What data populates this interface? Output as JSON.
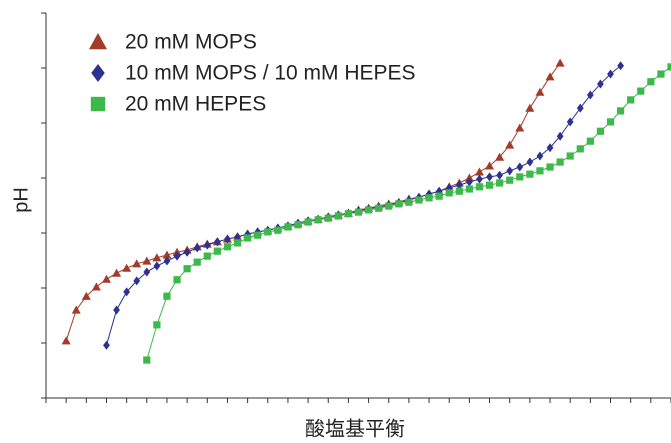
{
  "chart_data": {
    "type": "line",
    "xlabel": "酸塩基平衡",
    "ylabel": "pH",
    "xlim": [
      0,
      62
    ],
    "ylim": [
      0,
      7
    ],
    "xticks": [
      0,
      2,
      4,
      6,
      8,
      10,
      12,
      14,
      16,
      18,
      20,
      22,
      24,
      26,
      28,
      30,
      32,
      34,
      36,
      38,
      40,
      42,
      44,
      46,
      48,
      50,
      52,
      54,
      56,
      58,
      60,
      62
    ],
    "yticks": [
      0,
      1,
      2,
      3,
      4,
      5,
      6,
      7
    ],
    "legend": "upper left",
    "series": [
      {
        "name": "20 mM MOPS",
        "color": "#a33b29",
        "marker": "triangle",
        "x": [
          2,
          3,
          4,
          5,
          6,
          7,
          8,
          9,
          10,
          11,
          12,
          13,
          14,
          15,
          16,
          17,
          18,
          19,
          20,
          21,
          22,
          23,
          24,
          25,
          26,
          27,
          28,
          29,
          30,
          31,
          32,
          33,
          34,
          35,
          36,
          37,
          38,
          39,
          40,
          41,
          42,
          43,
          44,
          45,
          46,
          47,
          48,
          49,
          50,
          51
        ],
        "values": [
          1.04,
          1.6,
          1.85,
          2.02,
          2.16,
          2.27,
          2.36,
          2.44,
          2.49,
          2.55,
          2.6,
          2.65,
          2.69,
          2.75,
          2.8,
          2.84,
          2.89,
          2.93,
          2.98,
          3.02,
          3.05,
          3.09,
          3.13,
          3.18,
          3.22,
          3.25,
          3.29,
          3.33,
          3.36,
          3.42,
          3.45,
          3.49,
          3.53,
          3.56,
          3.62,
          3.65,
          3.71,
          3.76,
          3.84,
          3.91,
          4.0,
          4.11,
          4.22,
          4.38,
          4.6,
          4.91,
          5.27,
          5.56,
          5.84,
          6.09
        ]
      },
      {
        "name": "10 mM MOPS / 10 mM HEPES",
        "color": "#2e3192",
        "marker": "diamond",
        "x": [
          6,
          7,
          8,
          9,
          10,
          11,
          12,
          13,
          14,
          15,
          16,
          17,
          18,
          19,
          20,
          21,
          22,
          23,
          24,
          25,
          26,
          27,
          28,
          29,
          30,
          31,
          32,
          33,
          34,
          35,
          36,
          37,
          38,
          39,
          40,
          41,
          42,
          43,
          44,
          45,
          46,
          47,
          48,
          49,
          50,
          51,
          52,
          53,
          54,
          55,
          56,
          57
        ],
        "values": [
          0.96,
          1.6,
          1.93,
          2.13,
          2.29,
          2.4,
          2.49,
          2.58,
          2.65,
          2.73,
          2.78,
          2.84,
          2.89,
          2.93,
          2.98,
          3.02,
          3.05,
          3.09,
          3.13,
          3.18,
          3.22,
          3.25,
          3.29,
          3.33,
          3.36,
          3.4,
          3.44,
          3.47,
          3.51,
          3.55,
          3.6,
          3.65,
          3.71,
          3.76,
          3.82,
          3.87,
          3.93,
          3.98,
          4.02,
          4.05,
          4.13,
          4.2,
          4.29,
          4.4,
          4.55,
          4.76,
          5.02,
          5.27,
          5.51,
          5.71,
          5.89,
          6.04
        ]
      },
      {
        "name": "20 mM HEPES",
        "color": "#3cb94a",
        "marker": "square",
        "x": [
          10,
          11,
          12,
          13,
          14,
          15,
          16,
          17,
          18,
          19,
          20,
          21,
          22,
          23,
          24,
          25,
          26,
          27,
          28,
          29,
          30,
          31,
          32,
          33,
          34,
          35,
          36,
          37,
          38,
          39,
          40,
          41,
          42,
          43,
          44,
          45,
          46,
          47,
          48,
          49,
          50,
          51,
          52,
          53,
          54,
          55,
          56,
          57,
          58,
          59,
          60,
          61,
          62
        ],
        "values": [
          0.69,
          1.33,
          1.85,
          2.15,
          2.35,
          2.47,
          2.58,
          2.67,
          2.75,
          2.82,
          2.91,
          2.96,
          3.02,
          3.05,
          3.11,
          3.15,
          3.2,
          3.24,
          3.27,
          3.31,
          3.35,
          3.38,
          3.42,
          3.45,
          3.49,
          3.53,
          3.56,
          3.6,
          3.64,
          3.67,
          3.73,
          3.76,
          3.8,
          3.84,
          3.87,
          3.91,
          3.96,
          4.02,
          4.07,
          4.13,
          4.2,
          4.29,
          4.4,
          4.53,
          4.67,
          4.85,
          5.02,
          5.22,
          5.42,
          5.58,
          5.75,
          5.89,
          6.02
        ]
      }
    ]
  }
}
